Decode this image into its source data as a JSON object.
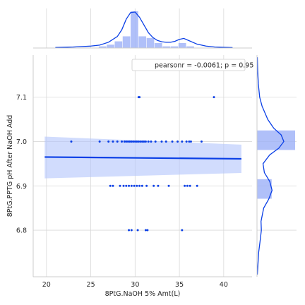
{
  "chart_data": {
    "type": "scatter",
    "xlabel": "8PtG.NaOH 5% Amt(L)",
    "ylabel": "8PtG.PPTG pH After NaOH Add",
    "xlim": [
      18.5,
      43.2
    ],
    "ylim": [
      6.695,
      7.195
    ],
    "xticks": [
      20,
      25,
      30,
      35,
      40
    ],
    "yticks": [
      6.8,
      6.9,
      7.0,
      7.1
    ],
    "xtick_labels": [
      "20",
      "25",
      "30",
      "35",
      "40"
    ],
    "ytick_labels": [
      "6.8",
      "6.9",
      "7.0",
      "7.1"
    ],
    "grid": true,
    "legend_text": "pearsonr = -0.0061; p = 0.95",
    "legend_position": "top-right",
    "colors": {
      "points": "#0a3fe6",
      "line": "#0a3fe6",
      "ci_band": "#b3c5fb",
      "hist_fill": "#9cb0f7",
      "grid": "#d9d9d9",
      "spine": "#cccccc"
    },
    "points": [
      [
        30.4,
        7.1
      ],
      [
        30.5,
        7.1
      ],
      [
        38.9,
        7.1
      ],
      [
        22.8,
        7.0
      ],
      [
        26.0,
        7.0
      ],
      [
        27.0,
        7.0
      ],
      [
        27.5,
        7.0
      ],
      [
        28.0,
        7.0
      ],
      [
        28.5,
        7.0
      ],
      [
        28.8,
        7.0
      ],
      [
        29.0,
        7.0
      ],
      [
        29.2,
        7.0
      ],
      [
        29.4,
        7.0
      ],
      [
        29.6,
        7.0
      ],
      [
        29.8,
        7.0
      ],
      [
        30.0,
        7.0
      ],
      [
        30.2,
        7.0
      ],
      [
        30.4,
        7.0
      ],
      [
        30.6,
        7.0
      ],
      [
        30.8,
        7.0
      ],
      [
        31.0,
        7.0
      ],
      [
        31.2,
        7.0
      ],
      [
        31.5,
        7.0
      ],
      [
        31.8,
        7.0
      ],
      [
        32.3,
        7.0
      ],
      [
        33.0,
        7.0
      ],
      [
        33.5,
        7.0
      ],
      [
        34.2,
        7.0
      ],
      [
        34.8,
        7.0
      ],
      [
        35.3,
        7.0
      ],
      [
        35.8,
        7.0
      ],
      [
        36.1,
        7.0
      ],
      [
        36.3,
        7.0
      ],
      [
        37.5,
        7.0
      ],
      [
        27.2,
        6.9
      ],
      [
        27.5,
        6.9
      ],
      [
        28.3,
        6.9
      ],
      [
        28.7,
        6.9
      ],
      [
        29.0,
        6.9
      ],
      [
        29.3,
        6.9
      ],
      [
        29.6,
        6.9
      ],
      [
        29.9,
        6.9
      ],
      [
        30.2,
        6.9
      ],
      [
        30.5,
        6.9
      ],
      [
        30.8,
        6.9
      ],
      [
        31.3,
        6.9
      ],
      [
        32.1,
        6.9
      ],
      [
        32.6,
        6.9
      ],
      [
        33.8,
        6.9
      ],
      [
        35.6,
        6.9
      ],
      [
        35.9,
        6.9
      ],
      [
        36.2,
        6.9
      ],
      [
        37.0,
        6.9
      ],
      [
        29.3,
        6.8
      ],
      [
        29.6,
        6.8
      ],
      [
        30.3,
        6.8
      ],
      [
        31.2,
        6.8
      ],
      [
        31.4,
        6.8
      ],
      [
        35.3,
        6.8
      ]
    ],
    "regression": {
      "x": [
        19.8,
        42.0
      ],
      "y": [
        6.965,
        6.961
      ],
      "ci_lower": [
        6.917,
        6.929
      ],
      "ci_upper": [
        7.011,
        6.993
      ]
    },
    "marginal_x_hist": {
      "bin_edges": [
        25.0,
        25.9,
        26.8,
        27.7,
        28.6,
        29.5,
        30.4,
        31.3,
        32.2,
        33.1,
        34.0,
        34.9,
        35.8,
        36.7
      ],
      "counts": [
        0,
        1,
        2,
        4,
        7,
        22,
        7,
        6,
        3,
        1,
        1,
        3,
        1
      ]
    },
    "marginal_x_kde": {
      "x": [
        21.0,
        23.0,
        25.0,
        26.0,
        27.0,
        28.0,
        28.5,
        29.0,
        29.5,
        30.0,
        30.5,
        31.0,
        31.5,
        32.0,
        32.5,
        33.0,
        33.5,
        34.0,
        34.5,
        35.0,
        35.5,
        36.0,
        37.0,
        38.0,
        39.0,
        41.0
      ],
      "density": [
        0.005,
        0.01,
        0.02,
        0.03,
        0.06,
        0.12,
        0.19,
        0.3,
        0.37,
        0.375,
        0.32,
        0.24,
        0.16,
        0.11,
        0.08,
        0.065,
        0.06,
        0.06,
        0.07,
        0.09,
        0.1,
        0.08,
        0.04,
        0.02,
        0.01,
        0.004
      ]
    },
    "marginal_y_hist": {
      "bin_edges": [
        6.87,
        6.915,
        6.98,
        7.025
      ],
      "counts": [
        15,
        0,
        39
      ]
    },
    "marginal_y_kde": {
      "y": [
        6.7,
        6.75,
        6.78,
        6.8,
        6.82,
        6.85,
        6.87,
        6.89,
        6.91,
        6.93,
        6.95,
        6.97,
        6.985,
        7.0,
        7.015,
        7.03,
        7.05,
        7.08,
        7.1,
        7.13,
        7.16,
        7.19
      ],
      "density": [
        0.01,
        0.05,
        0.1,
        0.13,
        0.12,
        0.2,
        0.35,
        0.45,
        0.38,
        0.22,
        0.18,
        0.38,
        0.65,
        0.8,
        0.72,
        0.5,
        0.32,
        0.15,
        0.08,
        0.04,
        0.02,
        0.01
      ]
    }
  }
}
